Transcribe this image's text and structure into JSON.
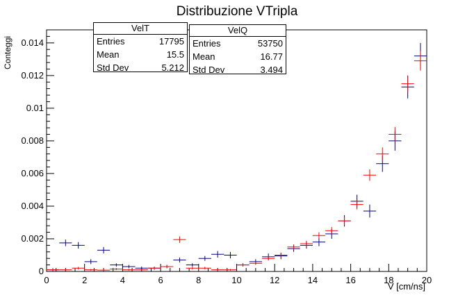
{
  "chart_data": {
    "type": "scatter",
    "title": "Distribuzione VTripla",
    "xlabel": "V [cm/ns]",
    "ylabel": "Conteggi",
    "xlim": [
      0,
      20
    ],
    "ylim": [
      0,
      0.0148
    ],
    "x_ticks": [
      "0",
      "2",
      "4",
      "6",
      "8",
      "10",
      "12",
      "14",
      "16",
      "18",
      "20"
    ],
    "y_ticks": [
      "0",
      "0.002",
      "0.004",
      "0.006",
      "0.008",
      "0.01",
      "0.012",
      "0.014"
    ],
    "bin_width": 0.6667,
    "series": [
      {
        "name": "VelT",
        "color": "#000080",
        "x": [
          0.33,
          1.0,
          1.67,
          2.33,
          3.0,
          3.67,
          4.33,
          5.0,
          5.67,
          6.33,
          7.0,
          7.67,
          8.33,
          9.0,
          9.67,
          10.33,
          11.0,
          11.67,
          12.33,
          13.0,
          13.67,
          14.33,
          15.0,
          15.67,
          16.33,
          17.0,
          17.67,
          18.33,
          19.0,
          19.67
        ],
        "y": [
          0.0001,
          0.00175,
          0.0016,
          0.0006,
          0.0013,
          0.0004,
          0.0003,
          0.0002,
          0.0002,
          0.0003,
          0.0007,
          0.0004,
          0.0008,
          0.00105,
          0.001,
          0.0004,
          0.0006,
          0.0009,
          0.00095,
          0.0014,
          0.0016,
          0.0018,
          0.0023,
          0.0031,
          0.0043,
          0.0037,
          0.0066,
          0.008,
          0.0113,
          0.0132
        ],
        "err": [
          0.0001,
          0.0002,
          0.0002,
          0.00015,
          0.0002,
          0.0001,
          0.0001,
          0.0001,
          0.0001,
          0.0001,
          0.00015,
          0.0001,
          0.00015,
          0.0002,
          0.0002,
          0.0001,
          0.00015,
          0.0002,
          0.0002,
          0.0002,
          0.0002,
          0.00025,
          0.0003,
          0.00035,
          0.0004,
          0.0004,
          0.0005,
          0.0006,
          0.0007,
          0.0008
        ]
      },
      {
        "name": "VelQ",
        "color": "#ff0000",
        "x": [
          0.33,
          1.0,
          1.67,
          2.33,
          3.0,
          3.67,
          4.33,
          5.0,
          5.67,
          6.33,
          7.0,
          7.67,
          8.33,
          9.0,
          9.67,
          10.33,
          11.0,
          11.67,
          12.33,
          13.0,
          13.67,
          14.33,
          15.0,
          15.67,
          16.33,
          17.0,
          17.67,
          18.33,
          19.0,
          19.67
        ],
        "y": [
          0.0001,
          0.0001,
          0.0002,
          0.0001,
          8e-05,
          0.00015,
          0.0001,
          0.0001,
          0.0002,
          0.0003,
          0.00195,
          0.0002,
          0.0002,
          0.0001,
          0.0001,
          0.0004,
          0.0005,
          0.0008,
          0.001,
          0.0015,
          0.0017,
          0.0022,
          0.0025,
          0.0031,
          0.0041,
          0.0059,
          0.0072,
          0.0084,
          0.0115,
          0.0129
        ],
        "err": [
          5e-05,
          5e-05,
          8e-05,
          5e-05,
          5e-05,
          6e-05,
          5e-05,
          5e-05,
          8e-05,
          0.0001,
          0.0002,
          8e-05,
          8e-05,
          5e-05,
          5e-05,
          0.0001,
          0.0001,
          0.00012,
          0.00014,
          0.00016,
          0.00018,
          0.0002,
          0.00022,
          0.00025,
          0.0003,
          0.00035,
          0.0004,
          0.00045,
          0.0005,
          0.0006
        ]
      }
    ],
    "stats": [
      {
        "name": "VelT",
        "entries_label": "Entries",
        "entries": "17795",
        "mean_label": "Mean",
        "mean": "15.5",
        "std_label": "Std Dev",
        "std": "5.212"
      },
      {
        "name": "VelQ",
        "entries_label": "Entries",
        "entries": "53750",
        "mean_label": "Mean",
        "mean": "16.77",
        "std_label": "Std Dev",
        "std": "3.494"
      }
    ],
    "grid": false,
    "legend": "top (stat boxes)"
  }
}
